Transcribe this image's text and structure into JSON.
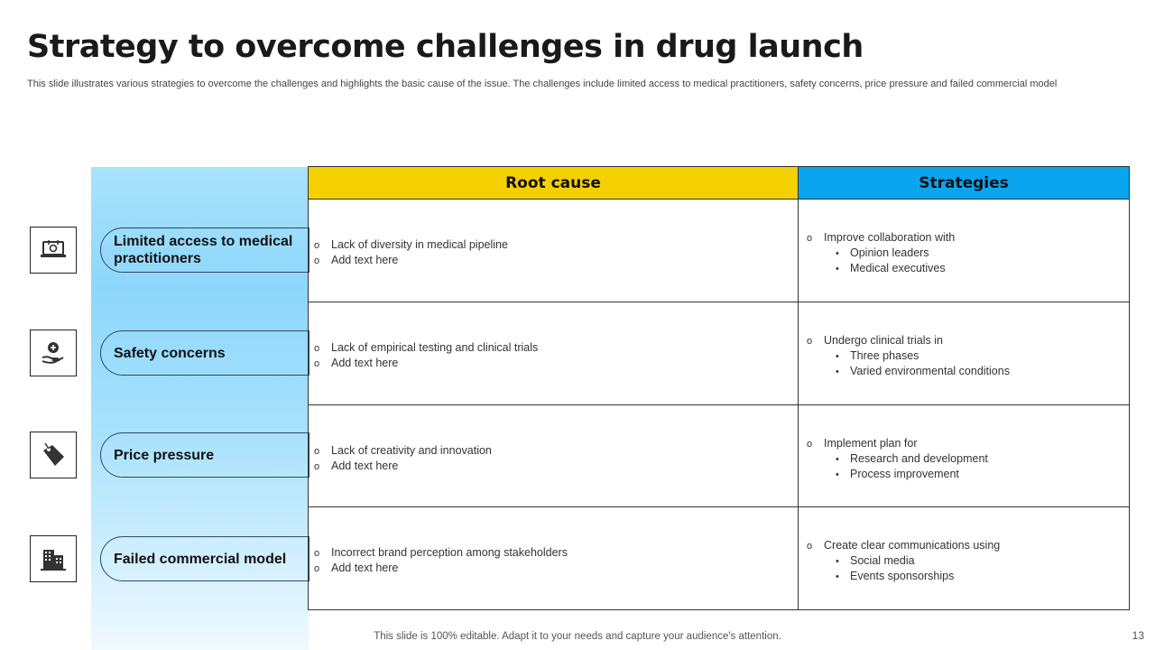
{
  "slide": {
    "title": "Strategy to overcome challenges in drug launch",
    "subtitle": "This slide illustrates various strategies to overcome the challenges and highlights the basic cause of the issue. The challenges include limited access to medical practitioners, safety concerns, price pressure and failed commercial model",
    "footer": "This slide is 100% editable. Adapt it to your needs and capture your audience's attention.",
    "page_number": "13"
  },
  "table": {
    "headers": {
      "root_cause": "Root cause",
      "strategies": "Strategies"
    },
    "colors": {
      "root_header": "#f5d000",
      "strategy_header": "#0aa5ef",
      "side_panel": "#8ed7fb"
    },
    "rows": [
      {
        "challenge": "Limited access to medical practitioners",
        "icon": "laptop-medical-icon",
        "root_causes": [
          "Lack of diversity  in medical pipeline",
          "Add text here"
        ],
        "strategy_head": "Improve  collaboration with",
        "strategy_items": [
          "Opinion leaders",
          "Medical executives"
        ]
      },
      {
        "challenge": "Safety concerns",
        "icon": "hand-care-icon",
        "root_causes": [
          "Lack of empirical testing and clinical trials",
          "Add text here"
        ],
        "strategy_head": "Undergo  clinical trials in",
        "strategy_items": [
          "Three  phases",
          "Varied environmental  conditions"
        ]
      },
      {
        "challenge": "Price pressure",
        "icon": "price-tag-icon",
        "root_causes": [
          "Lack of creativity  and innovation",
          "Add text here"
        ],
        "strategy_head": "Implement  plan for",
        "strategy_items": [
          "Research  and development",
          "Process improvement"
        ]
      },
      {
        "challenge": "Failed commercial model",
        "icon": "building-icon",
        "root_causes": [
          "Incorrect  brand  perception  among stakeholders",
          "Add text here"
        ],
        "strategy_head": "Create clear communications using",
        "strategy_items": [
          "Social media",
          "Events sponsorships"
        ]
      }
    ]
  }
}
